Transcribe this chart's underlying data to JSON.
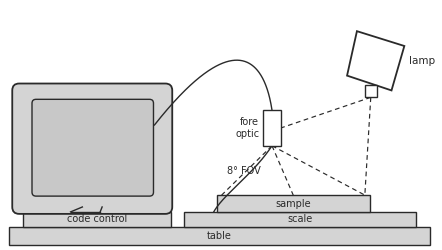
{
  "bg_color": "#ffffff",
  "line_color": "#2a2a2a",
  "fill_light": "#d4d4d4",
  "fill_white": "#ffffff",
  "fig_width": 4.42,
  "fig_height": 2.5,
  "dpi": 100,
  "labels": {
    "fore_optic": "fore\noptic",
    "lamp": "lamp",
    "code_control": "code control",
    "sample": "sample",
    "scale": "scale",
    "table": "table",
    "fov": "8° FOV"
  }
}
